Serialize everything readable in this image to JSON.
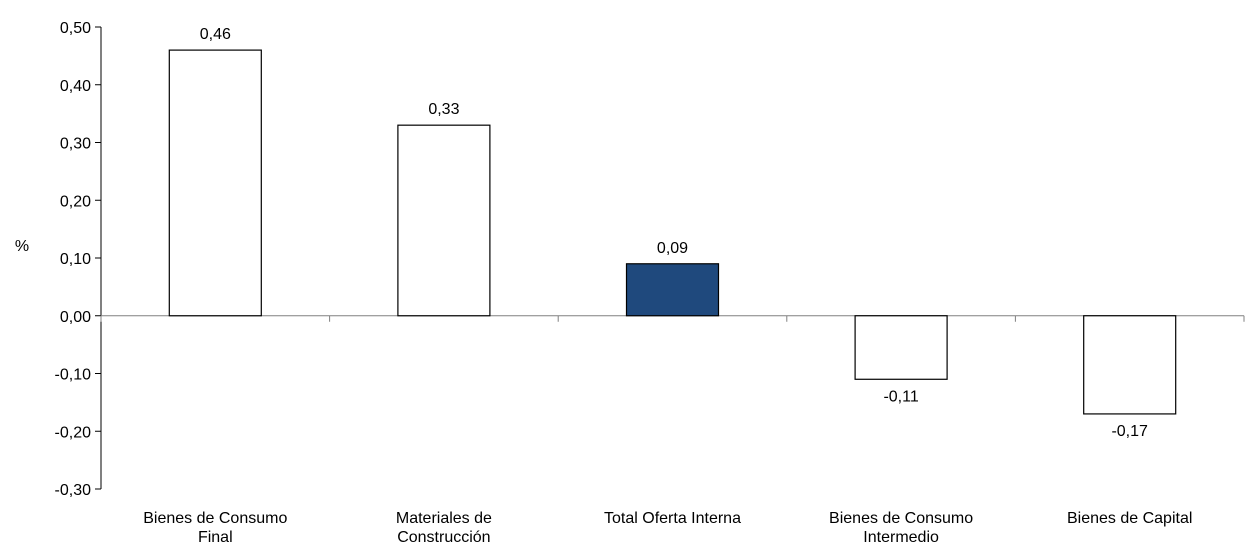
{
  "chart_data": {
    "type": "bar",
    "ylabel": "%",
    "xlabel": "",
    "ylim": [
      -0.3,
      0.5
    ],
    "yticks": [
      "-0,30",
      "-0,20",
      "-0,10",
      "0,00",
      "0,10",
      "0,20",
      "0,30",
      "0,40",
      "0,50"
    ],
    "ytick_values": [
      -0.3,
      -0.2,
      -0.1,
      0.0,
      0.1,
      0.2,
      0.3,
      0.4,
      0.5
    ],
    "categories": [
      [
        "Bienes de Consumo",
        "Final"
      ],
      [
        "Materiales de",
        "Construcción"
      ],
      [
        "Total Oferta Interna"
      ],
      [
        "Bienes de Consumo",
        "Intermedio"
      ],
      [
        "Bienes de Capital"
      ]
    ],
    "values": [
      0.46,
      0.33,
      0.09,
      -0.11,
      -0.17
    ],
    "data_labels": [
      "0,46",
      "0,33",
      "0,09",
      "-0,11",
      "-0,17"
    ],
    "bar_colors": [
      "#ffffff",
      "#ffffff",
      "#1f497d",
      "#ffffff",
      "#ffffff"
    ],
    "grid": false,
    "legend": "none"
  }
}
